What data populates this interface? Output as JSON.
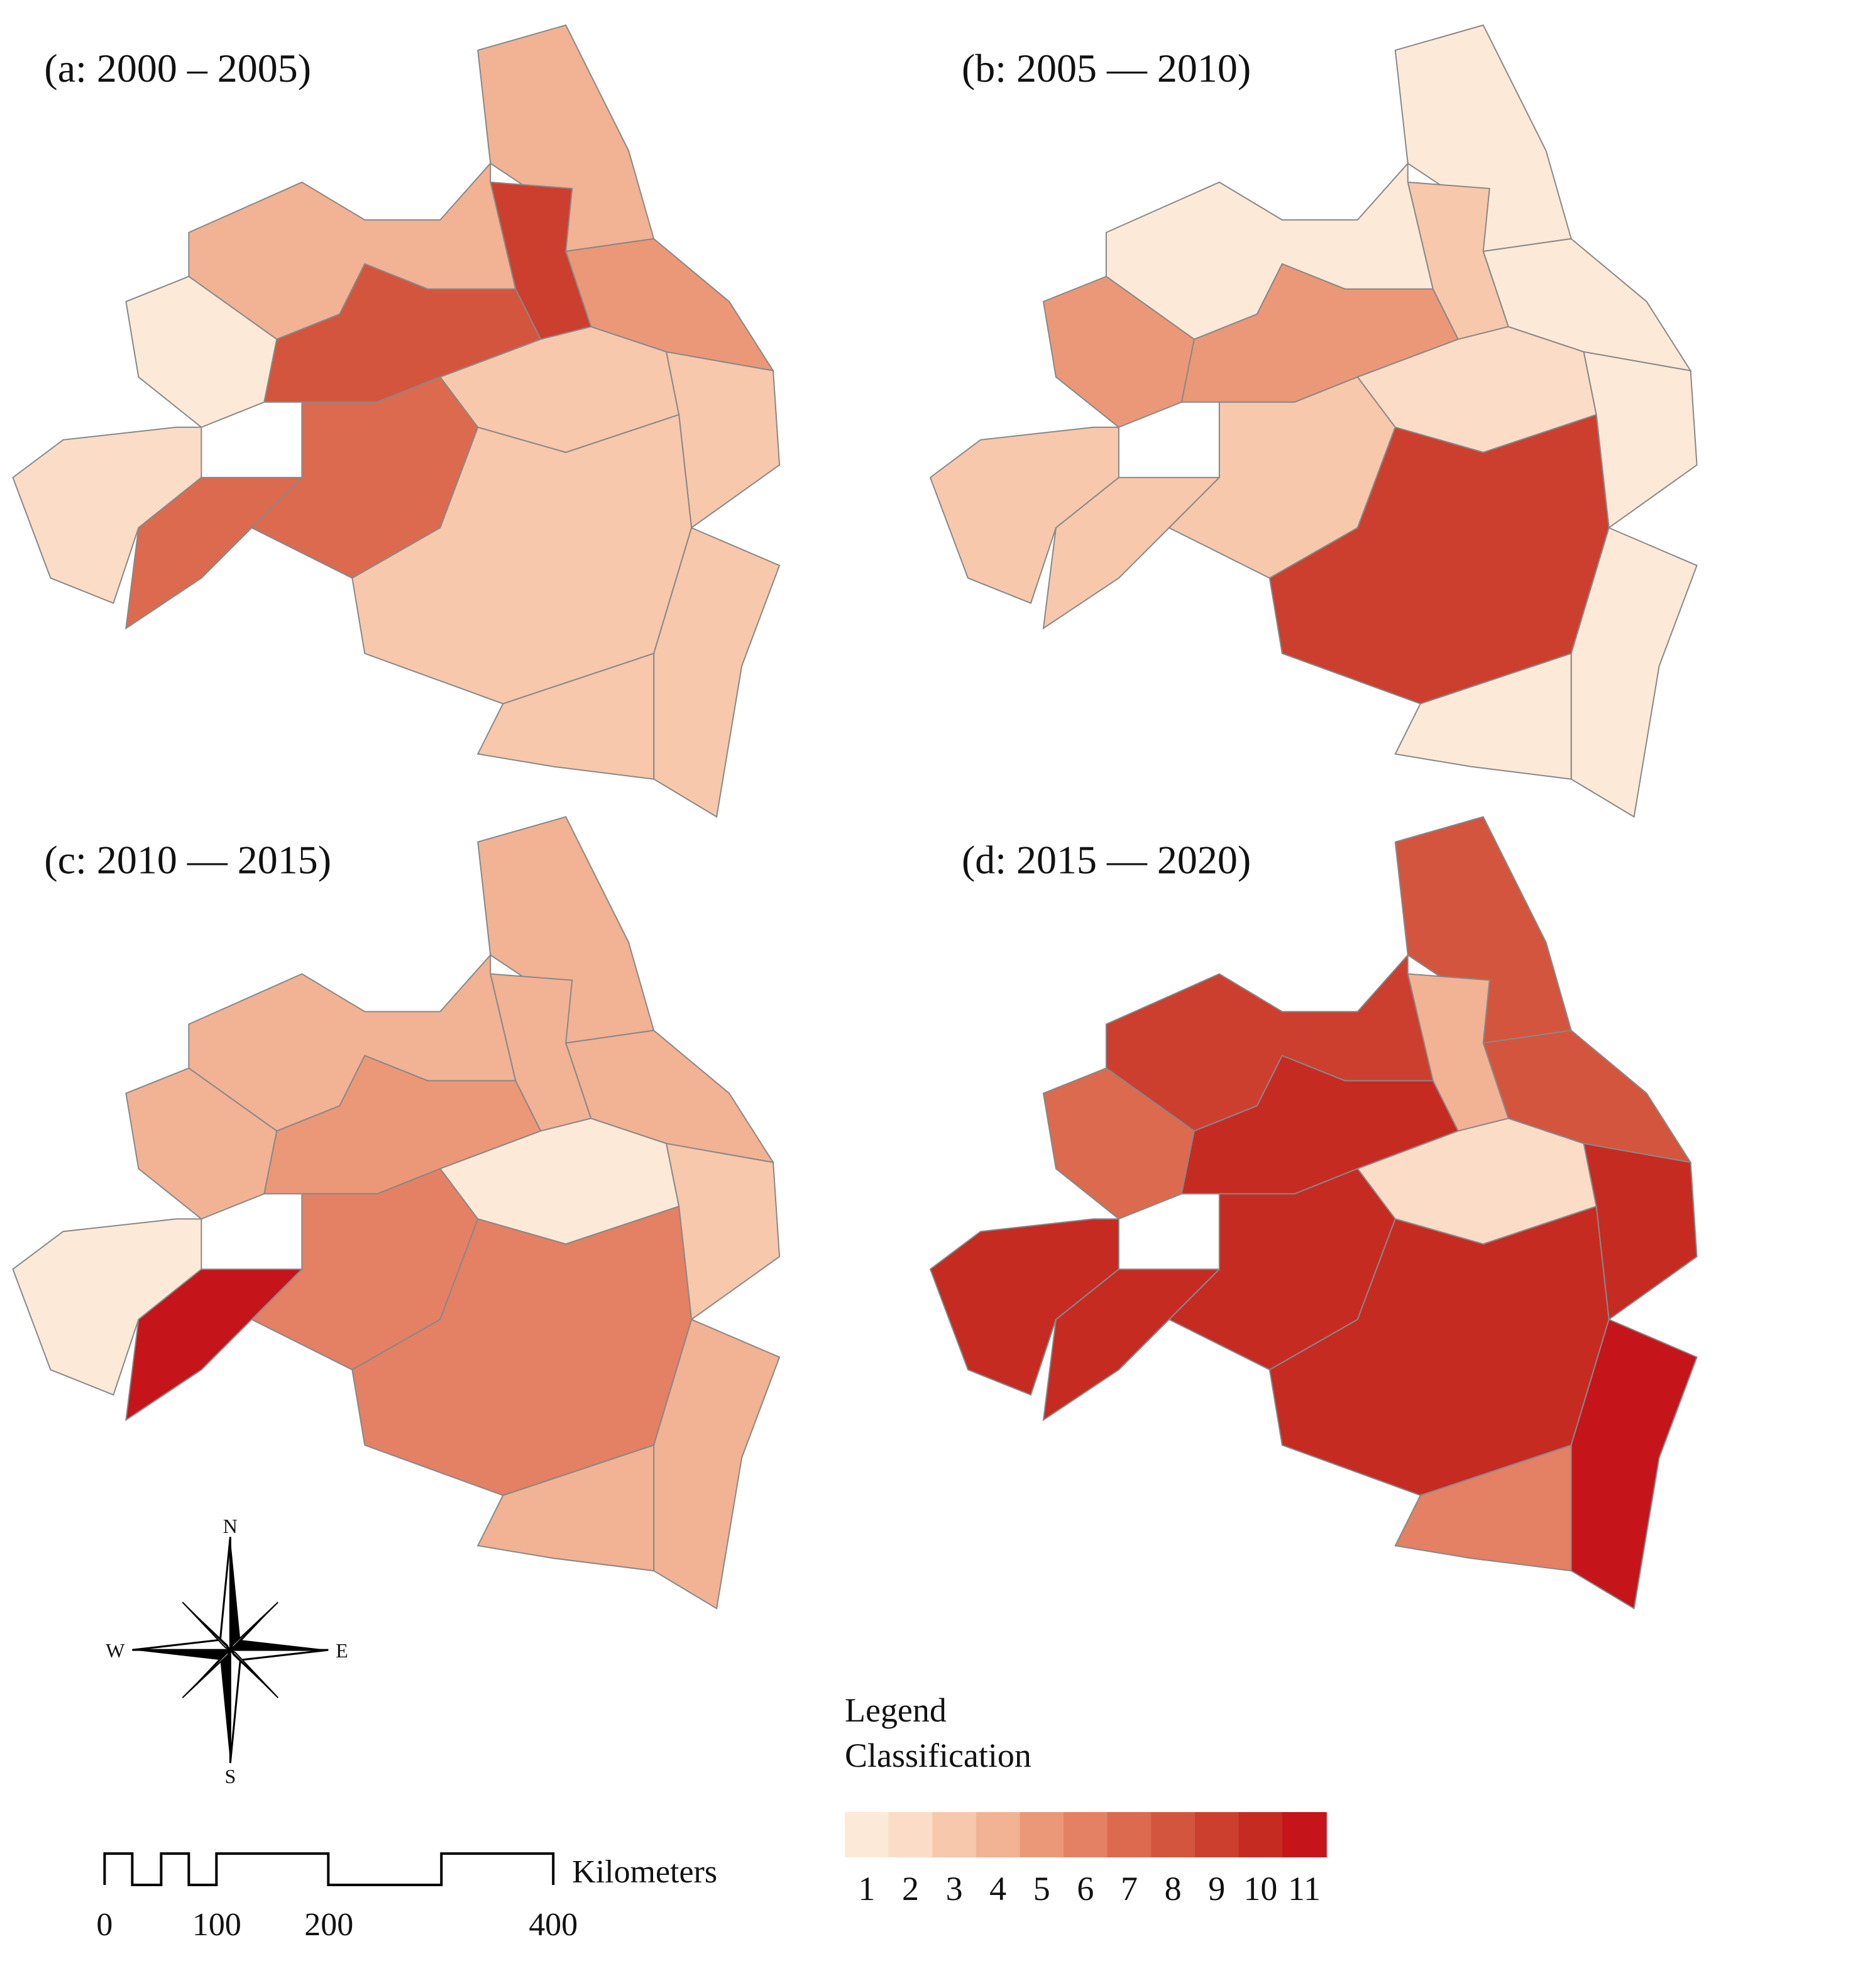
{
  "panels": [
    {
      "title": "(a: 2000 – 2005)",
      "regions": [
        4,
        5,
        9,
        4,
        1,
        8,
        2,
        7,
        7,
        3,
        3,
        3,
        3,
        3
      ]
    },
    {
      "title": "(b: 2005 — 2010)",
      "regions": [
        1,
        1,
        3,
        1,
        5,
        5,
        3,
        3,
        3,
        2,
        1,
        9,
        1,
        1
      ]
    },
    {
      "title": "(c: 2010 — 2015)",
      "regions": [
        4,
        4,
        4,
        4,
        4,
        5,
        1,
        11,
        6,
        1,
        3,
        6,
        4,
        4
      ]
    },
    {
      "title": "(d: 2015 — 2020)",
      "regions": [
        8,
        8,
        4,
        9,
        7,
        10,
        10,
        10,
        10,
        2,
        10,
        10,
        11,
        6
      ]
    }
  ],
  "compass": {
    "n": "N",
    "s": "S",
    "w": "W",
    "e": "E"
  },
  "scale": {
    "unit": "Kilometers",
    "ticks": [
      0,
      100,
      200,
      400
    ]
  },
  "legend": {
    "title": "Legend",
    "subtitle": "Classification",
    "classes": [
      1,
      2,
      3,
      4,
      5,
      6,
      7,
      8,
      9,
      10,
      11
    ],
    "colors": [
      "#fde9d7",
      "#fbdcc6",
      "#f7c8ab",
      "#f2b294",
      "#eb9878",
      "#e48064",
      "#dc6a4e",
      "#d4553e",
      "#cc3f2e",
      "#c62b22",
      "#c5141a"
    ]
  }
}
